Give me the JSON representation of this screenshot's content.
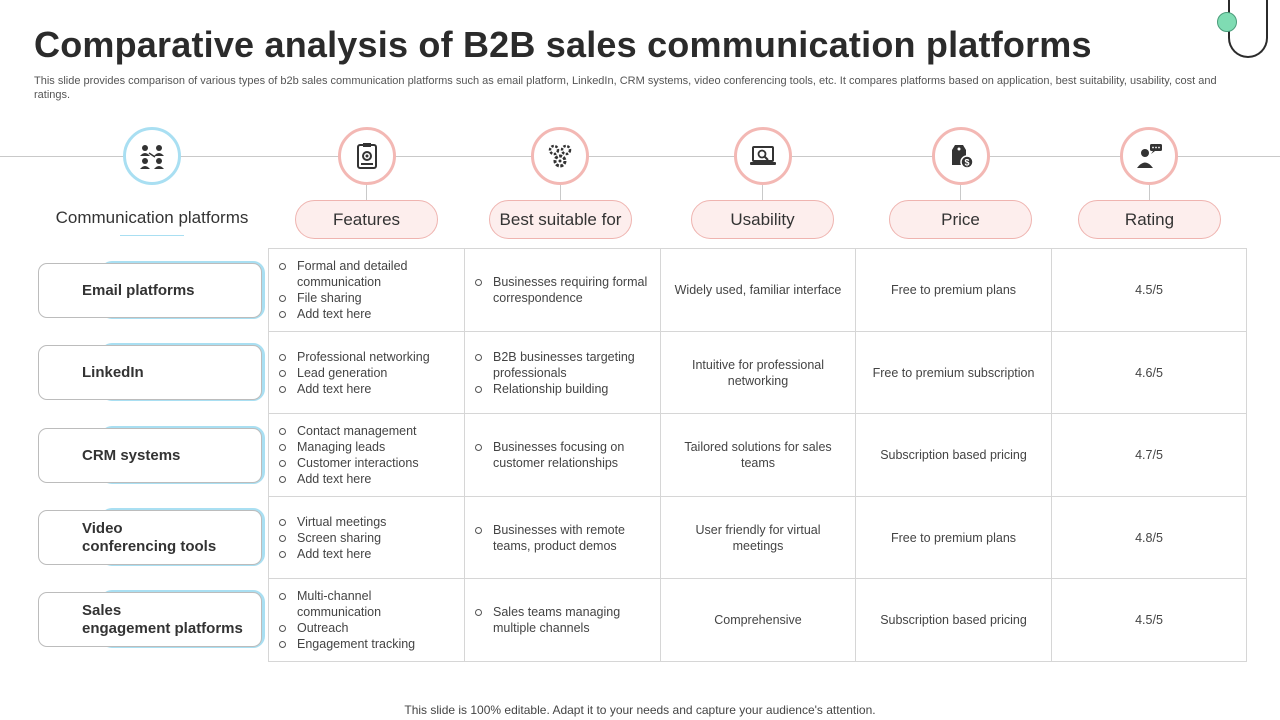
{
  "title": "Comparative analysis of B2B sales communication platforms",
  "subtitle": "This slide provides comparison of various types of b2b sales communication platforms such as email platform, LinkedIn, CRM systems, video conferencing tools, etc. It compares platforms based on application, best suitability, usability, cost and ratings.",
  "row_header": "Communication platforms",
  "columns": [
    {
      "label": "Features",
      "icon": "gear-document-icon"
    },
    {
      "label": "Best suitable for",
      "icon": "gears-icon"
    },
    {
      "label": "Usability",
      "icon": "laptop-magnifier-icon"
    },
    {
      "label": "Price",
      "icon": "price-tag-icon"
    },
    {
      "label": "Rating",
      "icon": "person-rating-icon"
    }
  ],
  "header_icon": "people-network-icon",
  "rows": [
    {
      "platform": [
        "Email platforms"
      ],
      "features": [
        "Formal and detailed communication",
        "File sharing",
        "Add text here"
      ],
      "best": [
        "Businesses requiring formal correspondence"
      ],
      "usability": "Widely used, familiar interface",
      "price": "Free to premium plans",
      "rating": "4.5/5"
    },
    {
      "platform": [
        "LinkedIn"
      ],
      "features": [
        "Professional networking",
        "Lead generation",
        "Add text here"
      ],
      "best": [
        "B2B businesses targeting professionals",
        "Relationship building"
      ],
      "usability": "Intuitive for professional networking",
      "price": "Free to premium subscription",
      "rating": "4.6/5"
    },
    {
      "platform": [
        "CRM systems"
      ],
      "features": [
        "Contact management",
        "Managing leads",
        "Customer interactions",
        "Add text here"
      ],
      "best": [
        "Businesses focusing on customer relationships"
      ],
      "usability": "Tailored  solutions for sales teams",
      "price": "Subscription based pricing",
      "rating": "4.7/5"
    },
    {
      "platform": [
        "Video",
        "conferencing tools"
      ],
      "features": [
        "Virtual meetings",
        "Screen sharing",
        "Add text here"
      ],
      "best": [
        "Businesses with remote teams, product demos"
      ],
      "usability": "User friendly for virtual meetings",
      "price": "Free to premium plans",
      "rating": "4.8/5"
    },
    {
      "platform": [
        "Sales",
        "engagement platforms"
      ],
      "features": [
        "Multi-channel communication",
        "Outreach",
        "Engagement tracking"
      ],
      "best": [
        "Sales teams managing multiple channels"
      ],
      "usability": "Comprehensive",
      "price": "Subscription based pricing",
      "rating": "4.5/5"
    }
  ],
  "footer": "This slide is 100% editable. Adapt it to your needs and capture your audience's attention.",
  "colors": {
    "accent_pink": "#f3b8b4",
    "pill_fill": "#fdeeed",
    "accent_blue": "#a9dff2",
    "deco_green": "#7fdcb3"
  }
}
